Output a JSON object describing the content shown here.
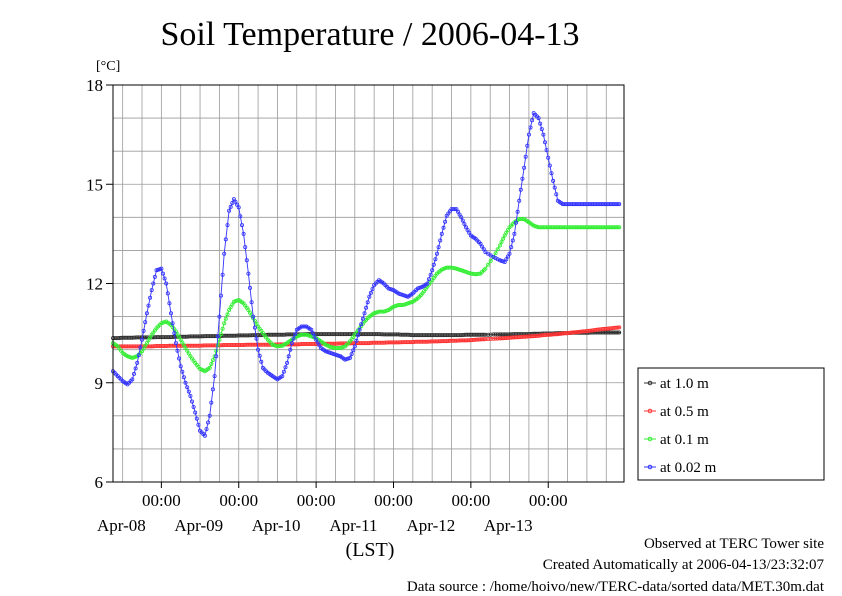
{
  "chart_data": {
    "type": "line",
    "title": "Soil Temperature / 2006-04-13",
    "ylabel": "[°C]",
    "xlabel": "(LST)",
    "ylim": [
      6,
      18
    ],
    "yticks": [
      6,
      9,
      12,
      15,
      18
    ],
    "xlim_days": [
      "2006-04-07T09:00",
      "2006-04-13T23:30"
    ],
    "x_ticks": [
      {
        "time": "2006-04-08T00:00",
        "label": "00:00",
        "date": "Apr-08"
      },
      {
        "time": "2006-04-09T00:00",
        "label": "00:00",
        "date": "Apr-09"
      },
      {
        "time": "2006-04-10T00:00",
        "label": "00:00",
        "date": "Apr-10"
      },
      {
        "time": "2006-04-11T00:00",
        "label": "00:00",
        "date": "Apr-11"
      },
      {
        "time": "2006-04-12T00:00",
        "label": "00:00",
        "date": "Apr-12"
      },
      {
        "time": "2006-04-13T00:00",
        "label": "00:00",
        "date": "Apr-13"
      }
    ],
    "grid": true,
    "legend_position": "right",
    "x_hours": [
      0,
      1.5,
      3,
      4.5,
      6,
      7.5,
      9,
      10.5,
      12,
      13.5,
      15,
      16.5,
      18,
      19.5,
      21,
      22.5,
      24,
      25.5,
      27,
      28.5,
      30,
      31.5,
      33,
      34.5,
      36,
      37.5,
      39,
      40.5,
      42,
      43.5,
      45,
      46.5,
      48,
      49.5,
      51,
      52.5,
      54,
      55.5,
      57,
      58.5,
      60,
      61.5,
      63,
      64.5,
      66,
      67.5,
      69,
      70.5,
      72,
      73.5,
      75,
      76.5,
      78,
      79.5,
      81,
      82.5,
      84,
      85.5,
      87,
      88.5,
      90,
      91.5,
      93,
      94.5,
      96,
      97.5,
      99,
      100.5,
      102,
      103.5,
      105,
      106.5,
      108,
      109.5,
      111,
      112.5,
      114,
      115.5,
      118,
      120,
      121.5,
      123,
      124.5,
      126,
      127.5,
      129,
      130.5,
      132,
      133.5,
      135,
      136.5,
      138,
      139.5,
      141,
      142.5,
      144,
      145.5,
      147,
      148.5,
      150,
      151.5,
      153,
      154.5,
      156,
      157.5
    ],
    "series": [
      {
        "name": "at 1.0 m",
        "color": "#333333",
        "values": [
          10.35,
          10.35,
          10.36,
          10.36,
          10.36,
          10.37,
          10.37,
          10.37,
          10.37,
          10.38,
          10.38,
          10.38,
          10.38,
          10.39,
          10.39,
          10.39,
          10.4,
          10.4,
          10.4,
          10.41,
          10.41,
          10.41,
          10.41,
          10.42,
          10.42,
          10.42,
          10.43,
          10.43,
          10.43,
          10.44,
          10.44,
          10.44,
          10.45,
          10.45,
          10.45,
          10.45,
          10.46,
          10.46,
          10.46,
          10.46,
          10.47,
          10.47,
          10.47,
          10.47,
          10.47,
          10.47,
          10.47,
          10.47,
          10.47,
          10.47,
          10.47,
          10.47,
          10.47,
          10.47,
          10.47,
          10.47,
          10.46,
          10.46,
          10.46,
          10.46,
          10.45,
          10.45,
          10.44,
          10.44,
          10.44,
          10.44,
          10.44,
          10.44,
          10.44,
          10.44,
          10.44,
          10.44,
          10.44,
          10.45,
          10.45,
          10.45,
          10.45,
          10.45,
          10.46,
          10.46,
          10.46,
          10.46,
          10.47,
          10.47,
          10.47,
          10.47,
          10.48,
          10.48,
          10.49,
          10.49,
          10.49,
          10.5,
          10.5,
          10.5,
          10.51,
          10.51,
          10.51,
          10.51,
          10.52,
          10.52,
          10.52,
          10.52,
          10.52,
          10.52,
          10.52
        ]
      },
      {
        "name": "at 0.5 m",
        "color": "#ff3333",
        "values": [
          10.1,
          10.1,
          10.1,
          10.1,
          10.1,
          10.1,
          10.1,
          10.1,
          10.1,
          10.11,
          10.11,
          10.11,
          10.12,
          10.12,
          10.12,
          10.12,
          10.12,
          10.12,
          10.12,
          10.13,
          10.13,
          10.13,
          10.13,
          10.14,
          10.14,
          10.14,
          10.14,
          10.14,
          10.15,
          10.15,
          10.15,
          10.15,
          10.15,
          10.15,
          10.16,
          10.16,
          10.16,
          10.16,
          10.16,
          10.17,
          10.17,
          10.17,
          10.17,
          10.18,
          10.18,
          10.18,
          10.18,
          10.19,
          10.19,
          10.19,
          10.2,
          10.2,
          10.2,
          10.2,
          10.21,
          10.21,
          10.21,
          10.22,
          10.22,
          10.22,
          10.23,
          10.23,
          10.23,
          10.24,
          10.24,
          10.24,
          10.25,
          10.25,
          10.26,
          10.26,
          10.27,
          10.27,
          10.28,
          10.28,
          10.29,
          10.3,
          10.31,
          10.32,
          10.33,
          10.34,
          10.35,
          10.36,
          10.37,
          10.38,
          10.39,
          10.4,
          10.41,
          10.42,
          10.44,
          10.45,
          10.46,
          10.47,
          10.49,
          10.5,
          10.52,
          10.53,
          10.55,
          10.56,
          10.58,
          10.6,
          10.62,
          10.63,
          10.65,
          10.66,
          10.68
        ]
      },
      {
        "name": "at 0.1 m",
        "color": "#33ee33",
        "values": [
          10.2,
          10.1,
          9.9,
          9.8,
          9.75,
          9.8,
          9.95,
          10.2,
          10.45,
          10.65,
          10.8,
          10.85,
          10.75,
          10.55,
          10.3,
          10.05,
          9.8,
          9.6,
          9.42,
          9.35,
          9.45,
          9.8,
          10.3,
          10.8,
          11.2,
          11.45,
          11.5,
          11.4,
          11.2,
          10.95,
          10.7,
          10.5,
          10.3,
          10.15,
          10.1,
          10.12,
          10.2,
          10.3,
          10.4,
          10.45,
          10.45,
          10.4,
          10.35,
          10.25,
          10.15,
          10.08,
          10.05,
          10.05,
          10.1,
          10.25,
          10.45,
          10.65,
          10.85,
          11.0,
          11.1,
          11.15,
          11.15,
          11.2,
          11.3,
          11.35,
          11.35,
          11.4,
          11.45,
          11.55,
          11.7,
          11.9,
          12.1,
          12.3,
          12.42,
          12.48,
          12.48,
          12.45,
          12.4,
          12.35,
          12.3,
          12.28,
          12.3,
          12.45,
          12.8,
          13.15,
          13.45,
          13.7,
          13.85,
          13.95,
          13.95,
          13.85,
          13.75,
          13.7,
          13.7,
          13.7,
          13.7,
          13.7,
          13.7,
          13.7,
          13.7,
          13.7,
          13.7,
          13.7,
          13.7,
          13.7,
          13.7,
          13.7,
          13.7,
          13.7,
          13.7
        ]
      },
      {
        "name": "at 0.02 m",
        "color": "#3333ff",
        "values": [
          9.35,
          9.2,
          9.05,
          8.95,
          9.1,
          9.6,
          10.3,
          11.1,
          11.8,
          12.4,
          12.45,
          12.0,
          11.1,
          10.2,
          9.5,
          9.0,
          8.6,
          8.1,
          7.55,
          7.4,
          8.0,
          9.2,
          11.0,
          12.9,
          14.2,
          14.55,
          14.3,
          13.5,
          12.3,
          11.0,
          10.0,
          9.45,
          9.3,
          9.2,
          9.1,
          9.2,
          9.6,
          10.2,
          10.6,
          10.7,
          10.7,
          10.6,
          10.3,
          10.05,
          9.95,
          9.9,
          9.85,
          9.8,
          9.7,
          9.75,
          10.1,
          10.6,
          11.1,
          11.6,
          11.95,
          12.1,
          12.0,
          11.85,
          11.8,
          11.7,
          11.65,
          11.6,
          11.7,
          11.85,
          11.9,
          12.0,
          12.4,
          12.9,
          13.5,
          14.05,
          14.25,
          14.25,
          14.0,
          13.7,
          13.45,
          13.35,
          13.2,
          12.95,
          12.8,
          12.7,
          12.65,
          12.9,
          13.5,
          14.5,
          15.5,
          16.5,
          17.15,
          17.0,
          16.5,
          15.8,
          15.1,
          14.5,
          14.4,
          14.4,
          14.4,
          14.4,
          14.4,
          14.4,
          14.4,
          14.4,
          14.4,
          14.4,
          14.4,
          14.4,
          14.4
        ]
      }
    ]
  },
  "footer": {
    "line1": "Observed at TERC Tower site",
    "line2": "Created Automatically at 2006-04-13/23:32:07",
    "line3": "Data source : /home/hoivo/new/TERC-data/sorted  data/MET.30m.dat"
  }
}
